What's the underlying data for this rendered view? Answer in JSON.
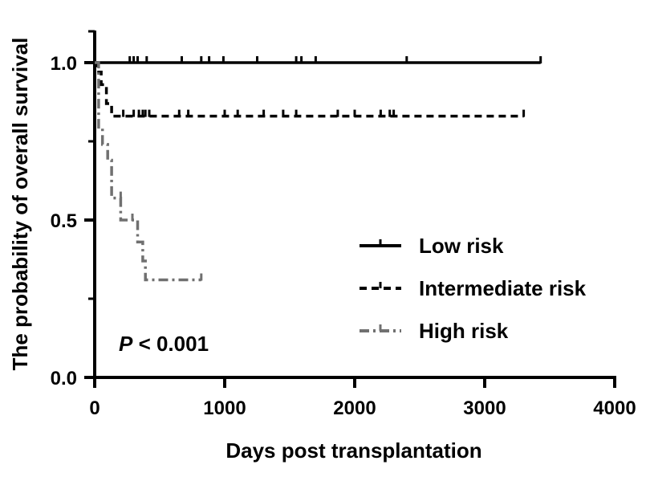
{
  "chart_data": {
    "type": "line",
    "subtype": "kaplan-meier",
    "xlabel": "Days post transplantation",
    "ylabel": "The probability of overall survival",
    "xlim": [
      0,
      4000
    ],
    "ylim": [
      0,
      1.0
    ],
    "xticks": [
      0,
      1000,
      2000,
      3000,
      4000
    ],
    "xtick_labels": [
      "0",
      "1000",
      "2000",
      "3000",
      "4000"
    ],
    "yticks": [
      0.0,
      0.5,
      1.0
    ],
    "ytick_labels": [
      "0.0",
      "0.5",
      "1.0"
    ],
    "annotation": {
      "italic": "P",
      "rest": " < 0.001"
    },
    "legend_position": "right-middle",
    "series": [
      {
        "name": "Low risk",
        "style": "solid",
        "color": "#000000",
        "steps": [
          [
            0,
            1.0
          ],
          [
            3430,
            1.0
          ]
        ],
        "censored": [
          [
            270,
            1.0
          ],
          [
            300,
            1.0
          ],
          [
            330,
            1.0
          ],
          [
            400,
            1.0
          ],
          [
            670,
            1.0
          ],
          [
            820,
            1.0
          ],
          [
            880,
            1.0
          ],
          [
            990,
            1.0
          ],
          [
            1250,
            1.0
          ],
          [
            1550,
            1.0
          ],
          [
            1590,
            1.0
          ],
          [
            1700,
            1.0
          ],
          [
            2400,
            1.0
          ],
          [
            3430,
            1.0
          ]
        ]
      },
      {
        "name": "Intermediate risk",
        "style": "dashed",
        "color": "#000000",
        "steps": [
          [
            0,
            1.0
          ],
          [
            20,
            0.97
          ],
          [
            50,
            0.93
          ],
          [
            90,
            0.87
          ],
          [
            130,
            0.83
          ],
          [
            3300,
            0.83
          ]
        ],
        "censored": [
          [
            220,
            0.83
          ],
          [
            300,
            0.83
          ],
          [
            340,
            0.83
          ],
          [
            370,
            0.83
          ],
          [
            390,
            0.83
          ],
          [
            420,
            0.83
          ],
          [
            650,
            0.83
          ],
          [
            720,
            0.83
          ],
          [
            1000,
            0.83
          ],
          [
            1100,
            0.83
          ],
          [
            1300,
            0.83
          ],
          [
            1450,
            0.83
          ],
          [
            1550,
            0.83
          ],
          [
            1870,
            0.83
          ],
          [
            2000,
            0.83
          ],
          [
            2200,
            0.83
          ],
          [
            2270,
            0.83
          ],
          [
            2300,
            0.83
          ],
          [
            3300,
            0.83
          ]
        ]
      },
      {
        "name": "High risk",
        "style": "dash-dot",
        "color": "#707070",
        "steps": [
          [
            0,
            1.0
          ],
          [
            30,
            0.79
          ],
          [
            60,
            0.74
          ],
          [
            100,
            0.69
          ],
          [
            130,
            0.57
          ],
          [
            200,
            0.5
          ],
          [
            330,
            0.43
          ],
          [
            370,
            0.37
          ],
          [
            390,
            0.31
          ],
          [
            820,
            0.31
          ]
        ],
        "censored": [
          [
            200,
            0.57
          ],
          [
            290,
            0.5
          ],
          [
            820,
            0.31
          ]
        ]
      }
    ]
  }
}
